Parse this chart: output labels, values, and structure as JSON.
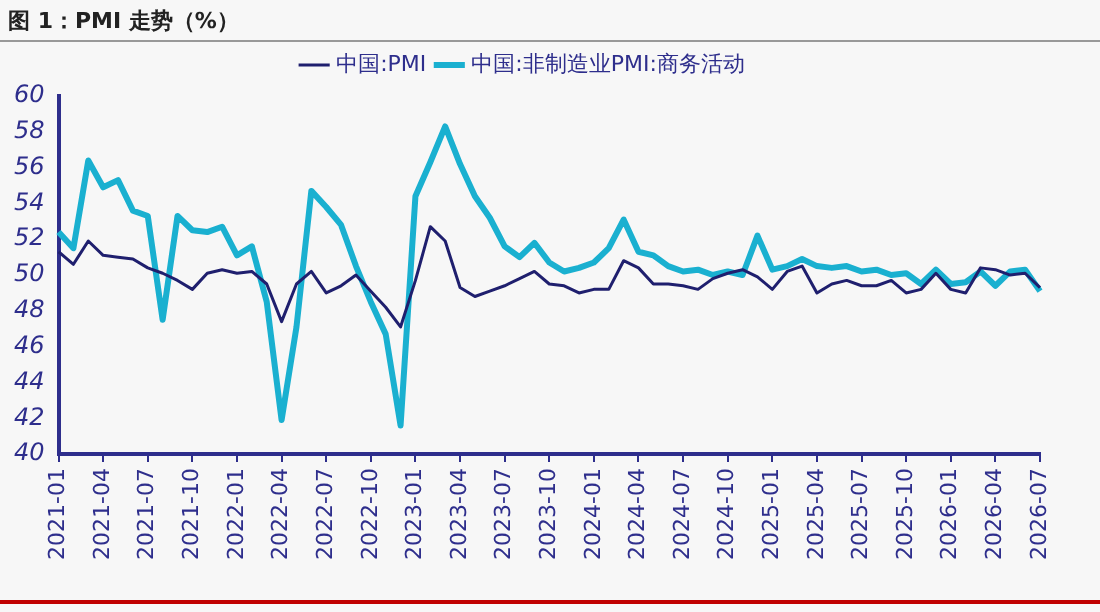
{
  "chart_data": {
    "type": "line",
    "title": "图 1：PMI 走势（%）",
    "categories": [
      "2021-01",
      null,
      null,
      "2021-04",
      null,
      null,
      "2021-07",
      null,
      null,
      "2021-10",
      null,
      null,
      "2022-01",
      null,
      null,
      "2022-04",
      null,
      null,
      "2022-07",
      null,
      null,
      "2022-10",
      null,
      null,
      "2023-01",
      null,
      null,
      "2023-04",
      null,
      null,
      "2023-07",
      null,
      null,
      "2023-10",
      null,
      null,
      "2024-01",
      null,
      null,
      "2024-04",
      null,
      null,
      "2024-07",
      null,
      null,
      "2024-10",
      null,
      null,
      "2025-01",
      null,
      null,
      "2025-04",
      null,
      null,
      "2025-07",
      null,
      null,
      "2025-10",
      null,
      null,
      "2026-01",
      null,
      null,
      "2026-04",
      null,
      null,
      "2026-07"
    ],
    "series": [
      {
        "name": "中国:PMI",
        "color": "#1f1f6e",
        "values": [
          51.3,
          50.6,
          51.9,
          51.1,
          51.0,
          50.9,
          50.4,
          50.1,
          49.7,
          49.2,
          50.1,
          50.3,
          50.1,
          50.2,
          49.5,
          47.4,
          49.5,
          50.2,
          49.0,
          49.4,
          50.0,
          49.1,
          48.2,
          47.1,
          49.7,
          52.7,
          51.9,
          49.3,
          48.8,
          49.1,
          49.4,
          49.8,
          50.2,
          49.5,
          49.4,
          49.0,
          49.2,
          49.2,
          50.8,
          50.4,
          49.5,
          49.5,
          49.4,
          49.2,
          49.8,
          50.1,
          50.3,
          49.9,
          49.2,
          50.2,
          50.5,
          49.0,
          49.5,
          49.7,
          49.4,
          49.4,
          49.7,
          49.0,
          49.2,
          50.1,
          49.2,
          49.0,
          50.4,
          50.3,
          50.0,
          50.1,
          49.3
        ]
      },
      {
        "name": "中国:非制造业PMI:商务活动",
        "color": "#1ab0d0",
        "values": [
          52.4,
          51.5,
          56.4,
          54.9,
          55.3,
          53.6,
          53.3,
          47.5,
          53.3,
          52.5,
          52.4,
          52.7,
          51.1,
          51.6,
          48.5,
          41.9,
          47.1,
          54.7,
          53.8,
          52.8,
          50.5,
          48.5,
          46.7,
          41.6,
          54.4,
          56.3,
          58.3,
          56.2,
          54.4,
          53.2,
          51.6,
          51.0,
          51.8,
          50.7,
          50.2,
          50.4,
          50.7,
          51.5,
          53.1,
          51.3,
          51.1,
          50.5,
          50.2,
          50.3,
          50.0,
          50.2,
          50.0,
          52.2,
          50.3,
          50.5,
          50.9,
          50.5,
          50.4,
          50.5,
          50.2,
          50.3,
          50.0,
          50.1,
          49.5,
          50.3,
          49.5,
          49.6,
          50.2,
          49.4,
          50.2,
          50.3,
          49.1
        ]
      }
    ],
    "ylim": [
      40,
      60
    ],
    "yticks": [
      40,
      42,
      44,
      46,
      48,
      50,
      52,
      54,
      56,
      58,
      60
    ],
    "grid": false,
    "legend": "top",
    "marker": "none",
    "line_style": "solid"
  }
}
